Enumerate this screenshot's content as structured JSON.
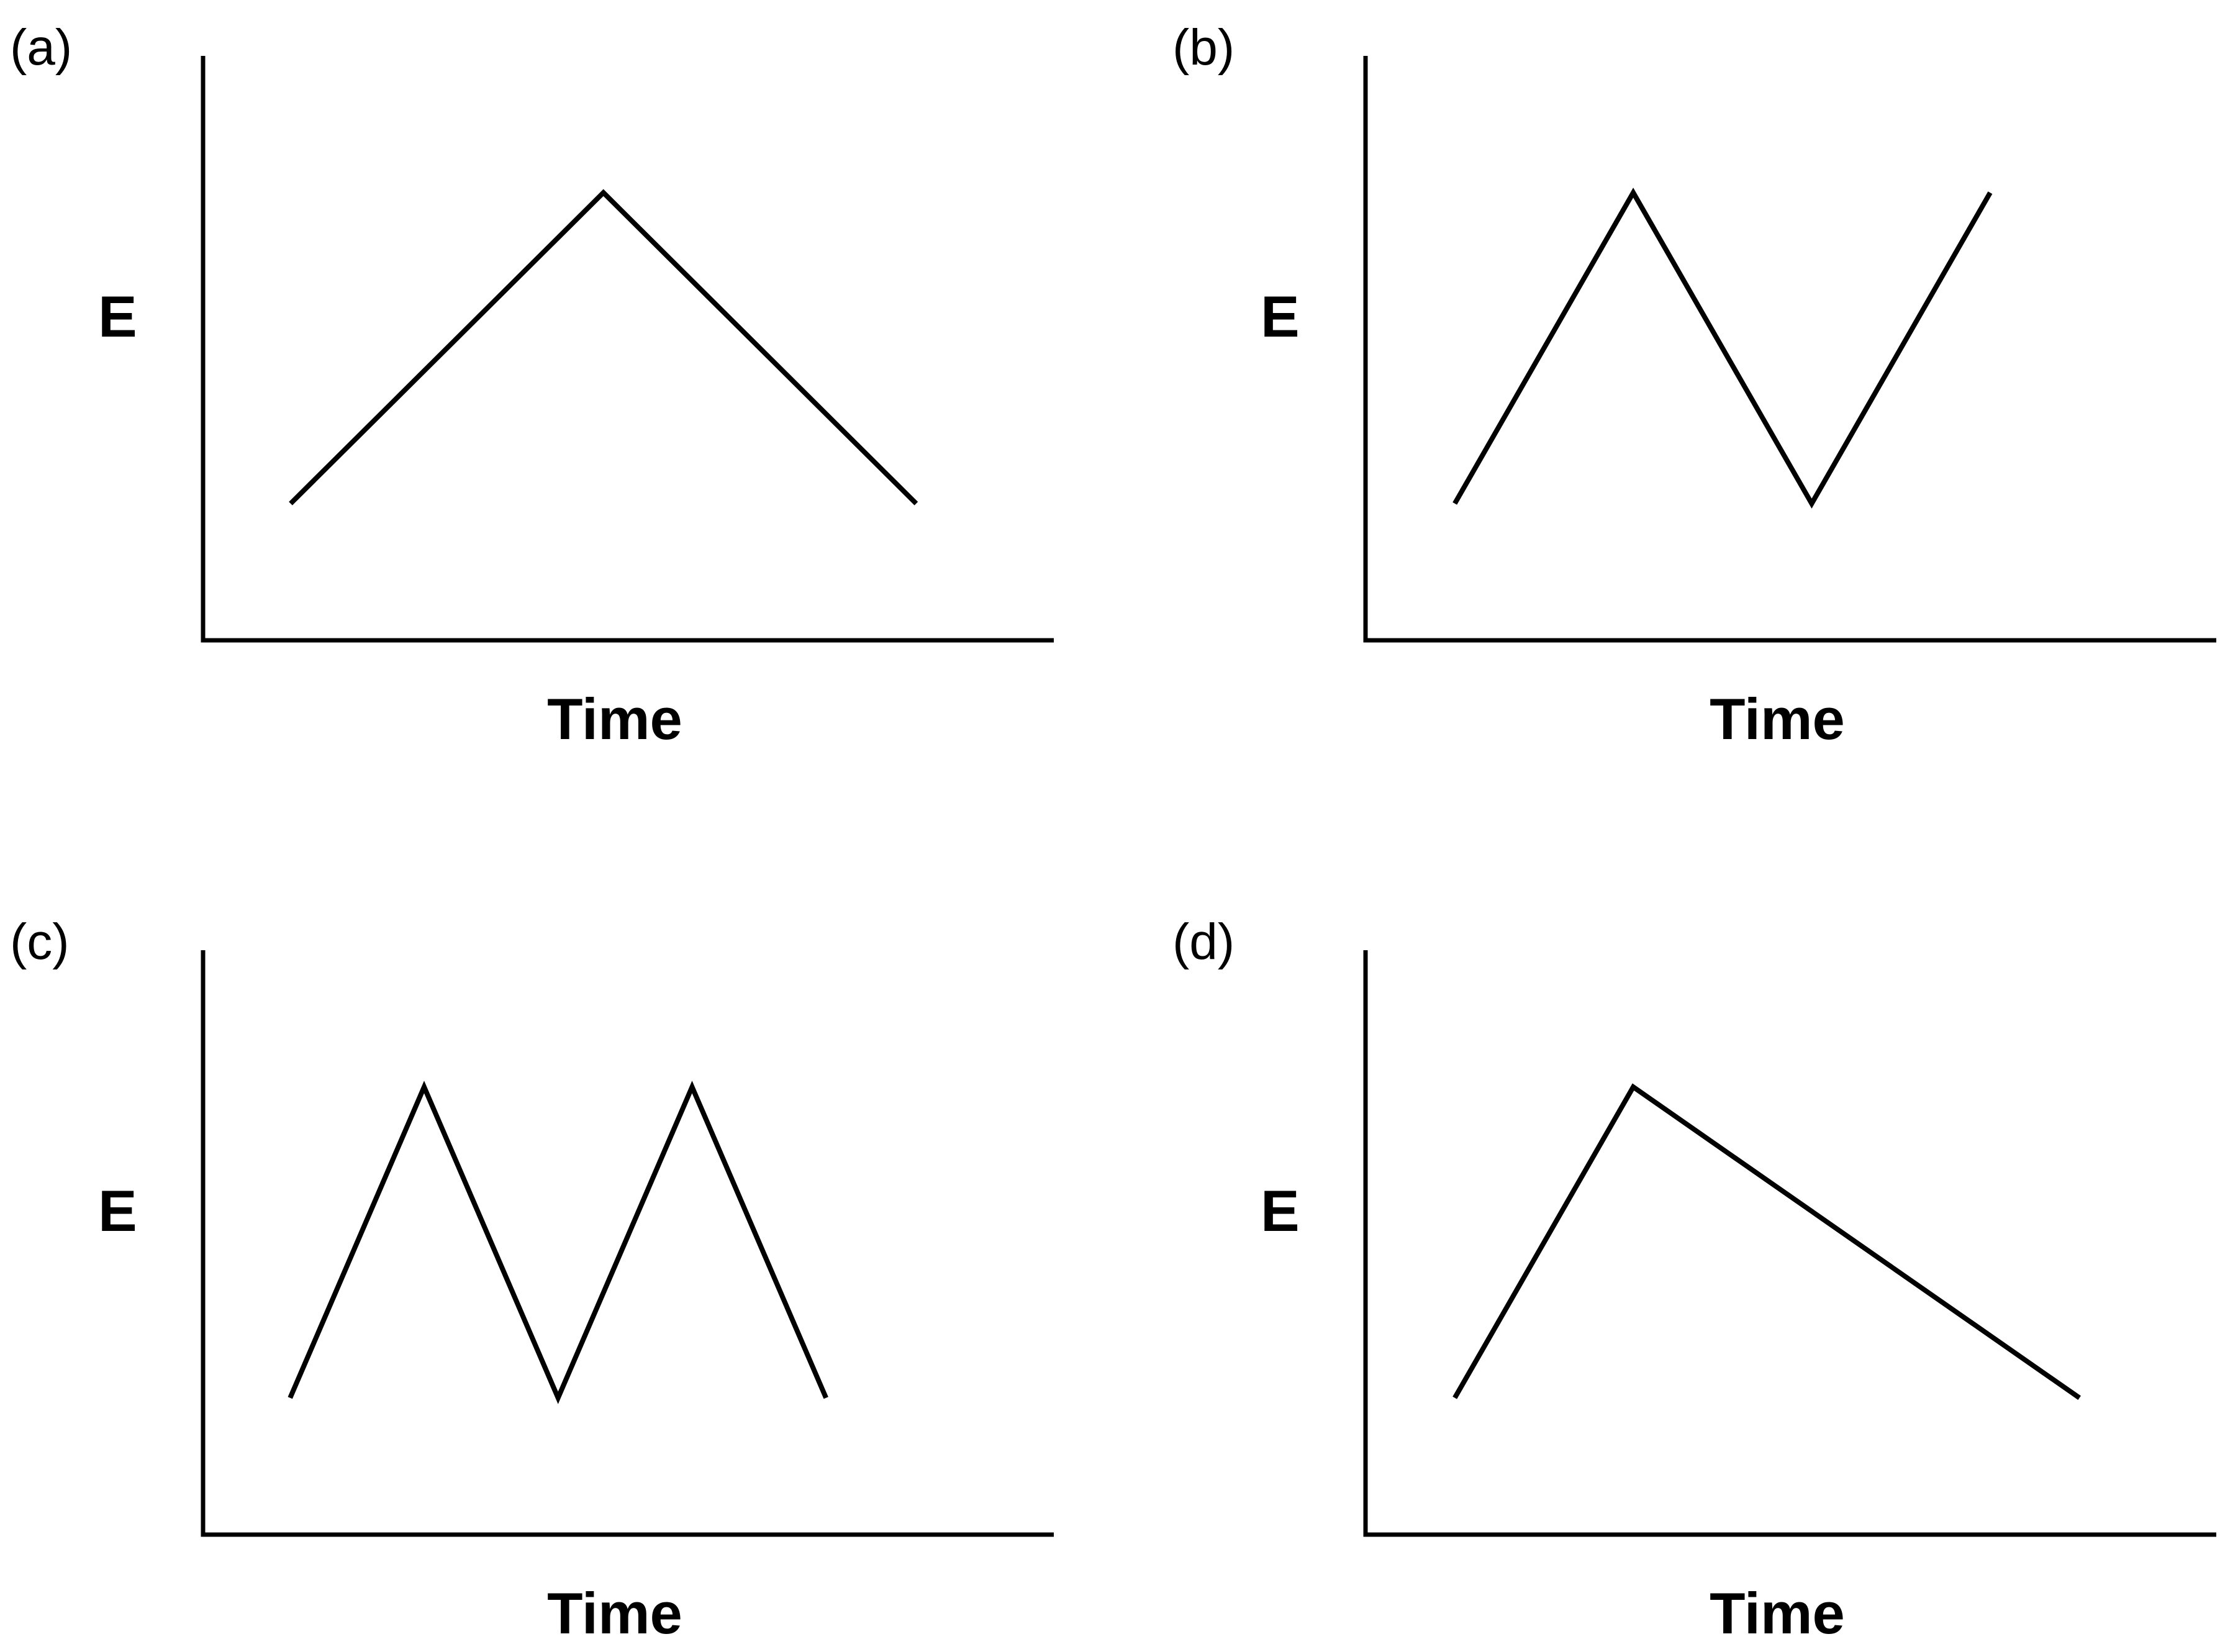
{
  "colors": {
    "background": "#ffffff",
    "line": "#000000"
  },
  "chart_data": [
    {
      "type": "line",
      "panel_label": "(a)",
      "xlabel": "Time",
      "ylabel": "E",
      "x": [
        0,
        5,
        10
      ],
      "y": [
        1,
        6,
        1
      ],
      "xlim": [
        -1.4,
        12.2
      ],
      "ylim": [
        -1.2,
        8.2
      ],
      "grid": false,
      "legend": "none"
    },
    {
      "type": "line",
      "panel_label": "(b)",
      "xlabel": "Time",
      "ylabel": "E",
      "x": [
        0,
        3,
        6,
        9
      ],
      "y": [
        1,
        6,
        1,
        6
      ],
      "xlim": [
        -1.5,
        12.8
      ],
      "ylim": [
        -1.2,
        8.2
      ],
      "grid": false,
      "legend": "none"
    },
    {
      "type": "line",
      "panel_label": "(c)",
      "xlabel": "Time",
      "ylabel": "E",
      "x": [
        0,
        2,
        4,
        6,
        8
      ],
      "y": [
        1,
        6,
        1,
        6,
        1
      ],
      "xlim": [
        -1.3,
        11.4
      ],
      "ylim": [
        -1.2,
        8.2
      ],
      "grid": false,
      "legend": "none"
    },
    {
      "type": "line",
      "panel_label": "(d)",
      "xlabel": "Time",
      "ylabel": "E",
      "x": [
        0,
        3,
        10.5
      ],
      "y": [
        1,
        6,
        1
      ],
      "xlim": [
        -1.5,
        12.8
      ],
      "ylim": [
        -1.2,
        8.2
      ],
      "grid": false,
      "legend": "none"
    }
  ]
}
